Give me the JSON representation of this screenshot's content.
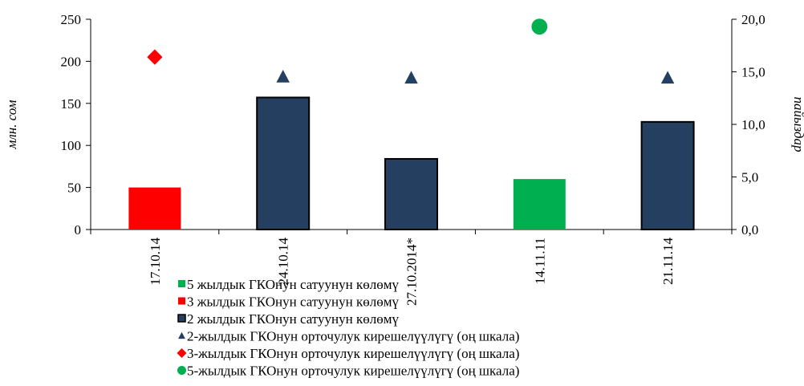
{
  "chart_data": {
    "type": "bar",
    "categories": [
      "17.10.14",
      "24.10.14",
      "27.10.2014*",
      "14.11.11",
      "21.11.14"
    ],
    "series": [
      {
        "name": "5 жылдык ГКОнун сатуунун көлөмү",
        "kind": "bar",
        "axis": "left",
        "color": "#00b050",
        "values": [
          null,
          null,
          null,
          60,
          null
        ]
      },
      {
        "name": "3 жылдык ГКОнун сатуунун көлөмү",
        "kind": "bar",
        "axis": "left",
        "color": "#ff0000",
        "values": [
          50,
          null,
          null,
          null,
          null
        ]
      },
      {
        "name": "2 жылдык ГКОнун сатуунун көлөмү",
        "kind": "bar",
        "axis": "left",
        "color": "#243f60",
        "values": [
          null,
          157,
          84,
          null,
          128
        ]
      },
      {
        "name": "2-жылдык ГКОнун орточулук кирешелүүлүгү (оң шкала)",
        "kind": "marker",
        "marker": "triangle",
        "axis": "right",
        "color": "#243f60",
        "values": [
          null,
          14.5,
          14.4,
          null,
          14.4
        ]
      },
      {
        "name": "3-жылдык ГКОнун орточулук кирешелүүлүгү (оң шкала)",
        "kind": "marker",
        "marker": "diamond",
        "axis": "right",
        "color": "#ff0000",
        "values": [
          16.4,
          null,
          null,
          null,
          null
        ]
      },
      {
        "name": "5-жылдык ГКОнун орточулук кирешелүүлүгү (оң шкала)",
        "kind": "marker",
        "marker": "circle",
        "axis": "right",
        "color": "#00b050",
        "values": [
          null,
          null,
          null,
          19.3,
          null
        ]
      }
    ],
    "ylabel": "млн. сом",
    "y2label": "пайыздар",
    "ylim": [
      0,
      250
    ],
    "y2lim": [
      0,
      20
    ],
    "yticks": [
      "0",
      "50",
      "100",
      "150",
      "200",
      "250"
    ],
    "y2ticks": [
      "0,0",
      "5,0",
      "10,0",
      "15,0",
      "20,0"
    ],
    "grid": false,
    "legend": "bottom"
  }
}
